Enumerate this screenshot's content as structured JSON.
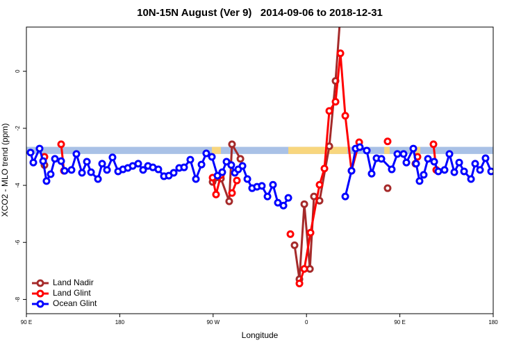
{
  "chart_data": {
    "type": "line",
    "title": "10N-15N August (Ver 9)   2014-09-06 to 2018-12-31",
    "x_label": "Longitude",
    "y_label": "XCO2 - MLO trend (ppm)",
    "xlim": [
      90,
      540
    ],
    "ylim": [
      -8.5,
      1.55
    ],
    "xticks": [
      {
        "value": 90,
        "label": "90 E"
      },
      {
        "value": 180,
        "label": "180"
      },
      {
        "value": 270,
        "label": "90 W"
      },
      {
        "value": 360,
        "label": "0"
      },
      {
        "value": 450,
        "label": "90 E"
      },
      {
        "value": 540,
        "label": "180"
      }
    ],
    "yticks": [
      0,
      -2,
      -4,
      -6,
      -8
    ],
    "legend": "bottom-left",
    "surface_band": {
      "ylim": [
        -2.65,
        -2.9
      ],
      "ocean_color": "#a9c1e6",
      "land_color": "#f8d67e",
      "land_ranges": [
        [
          268.8,
          277.5
        ],
        [
          342.5,
          399.4
        ],
        [
          434.9,
          440.2
        ],
        [
          463.0,
          469.7
        ]
      ]
    },
    "series": [
      {
        "name": "Land Nadir",
        "color": "#a52a2a",
        "x": [
          107.4,
          250,
          269.5,
          277.5,
          285.5,
          288.2,
          296.3,
          320,
          348.5,
          353.2,
          357.9,
          363.3,
          367.2,
          372.6,
          382.0,
          388.0,
          392.7,
          420,
          438.2,
          450,
          465.0
        ],
        "values": [
          -3.29,
          null,
          -3.88,
          -3.76,
          -4.56,
          -2.56,
          -3.07,
          null,
          -6.1,
          -7.29,
          -4.66,
          -6.93,
          -4.39,
          -4.54,
          -2.63,
          -0.34,
          2.0,
          null,
          -4.1,
          null,
          -3.24
        ]
      },
      {
        "name": "Land Glint",
        "color": "#ff0000",
        "x": [
          107.4,
          115,
          123.5,
          126.2,
          250,
          269.5,
          272.8,
          277.5,
          282,
          288.2,
          292.9,
          320,
          344.5,
          350,
          353.2,
          357.9,
          363.9,
          372.6,
          377.3,
          382.0,
          388.0,
          392.7,
          397.4,
          403.4,
          410.8,
          420,
          438.2,
          450,
          467.0,
          475,
          482.4,
          485.1
        ],
        "values": [
          -3.0,
          null,
          -2.56,
          -3.49,
          null,
          -3.73,
          -4.32,
          -3.64,
          null,
          -4.27,
          -3.83,
          null,
          -5.71,
          null,
          -7.44,
          -6.93,
          -5.66,
          -3.98,
          -3.41,
          -1.39,
          -1.07,
          0.63,
          -1.56,
          -3.49,
          -2.49,
          null,
          -2.46,
          null,
          -3.0,
          null,
          -2.56,
          -3.46
        ]
      },
      {
        "name": "Ocean Glint",
        "color": "#0000ff",
        "x": [
          94.0,
          96.7,
          102.7,
          106.1,
          109.4,
          113.4,
          117.5,
          123.5,
          126.8,
          133.5,
          138.2,
          143.6,
          148.3,
          152.3,
          159.0,
          163.0,
          167.7,
          173.0,
          178.4,
          183.1,
          187.8,
          192.5,
          197.8,
          202.5,
          207.2,
          211.9,
          217.2,
          222.6,
          227.3,
          232.0,
          237.3,
          242.0,
          248.0,
          253.4,
          258.8,
          263.4,
          268.8,
          274.2,
          278.8,
          282.9,
          287.5,
          290.9,
          294.2,
          298.3,
          303.0,
          307.6,
          312.3,
          317.0,
          322.4,
          327.7,
          332.4,
          337.8,
          342.5,
          370,
          397.4,
          403.4,
          407.4,
          411.4,
          418.1,
          422.8,
          427.5,
          432.2,
          442.2,
          447.6,
          453.6,
          456.3,
          463.0,
          465.7,
          469.0,
          473.0,
          477.1,
          483.1,
          487.1,
          493.1,
          497.8,
          502.5,
          507.2,
          511.9,
          518.6,
          522.6,
          527.3,
          532.6,
          538.0
        ],
        "values": [
          -2.85,
          -3.2,
          -2.71,
          -3.15,
          -3.85,
          -3.61,
          -3.07,
          -3.15,
          -3.49,
          -3.46,
          -2.9,
          -3.56,
          -3.17,
          -3.54,
          -3.78,
          -3.24,
          -3.46,
          -3.02,
          -3.51,
          -3.44,
          -3.39,
          -3.32,
          -3.24,
          -3.46,
          -3.32,
          -3.37,
          -3.44,
          -3.68,
          -3.66,
          -3.56,
          -3.39,
          -3.37,
          -3.1,
          -3.78,
          -3.27,
          -2.88,
          -3.0,
          -3.66,
          -3.54,
          -3.17,
          -3.29,
          -3.56,
          -3.44,
          -3.32,
          -3.78,
          -4.1,
          -4.05,
          -4.02,
          -4.39,
          -3.98,
          -4.61,
          -4.71,
          -4.44,
          null,
          -4.39,
          -3.49,
          -2.71,
          -2.66,
          -2.78,
          -3.59,
          -3.05,
          -3.07,
          -3.44,
          -2.9,
          -2.9,
          -3.2,
          -2.71,
          -3.24,
          -3.85,
          -3.63,
          -3.07,
          -3.17,
          -3.51,
          -3.46,
          -2.9,
          -3.54,
          -3.2,
          -3.51,
          -3.78,
          -3.24,
          -3.46,
          -3.05,
          -3.51
        ]
      }
    ]
  }
}
